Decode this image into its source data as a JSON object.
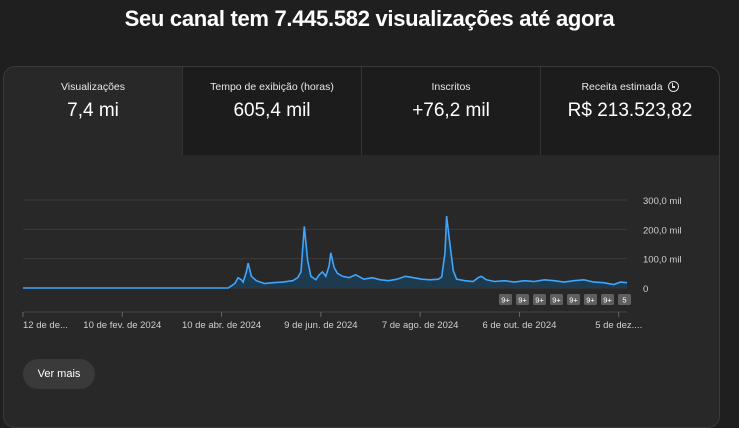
{
  "headline": "Seu canal tem 7.445.582 visualizações até agora",
  "metrics": [
    {
      "label": "Visualizações",
      "value": "7,4 mi"
    },
    {
      "label": "Tempo de exibição (horas)",
      "value": "605,4 mil"
    },
    {
      "label": "Inscritos",
      "value": "+76,2 mil"
    },
    {
      "label": "Receita estimada",
      "value": "R$ 213.523,82",
      "icon": "clock-icon"
    }
  ],
  "see_more_label": "Ver mais",
  "colors": {
    "line": "#3ea6ff",
    "fill": "#1e3a4f",
    "grid": "#3a3a3a",
    "marker": "#5f5f5f"
  },
  "chart_data": {
    "type": "area",
    "y_ticks": [
      "300,0 mil",
      "200,0 mil",
      "100,0 mil",
      "0"
    ],
    "ylim": [
      0,
      300000
    ],
    "x_ticks": [
      "12 de de...",
      "10 de fev. de 2024",
      "10 de abr. de 2024",
      "9 de jun. de 2024",
      "7 de ago. de 2024",
      "6 de out. de 2024",
      "5 de dez...."
    ],
    "x_tick_days": [
      0,
      60,
      120,
      180,
      240,
      300,
      360
    ],
    "x_range_days": [
      0,
      365
    ],
    "series": [
      {
        "points": [
          [
            0,
            0
          ],
          [
            124,
            0
          ],
          [
            128,
            15000
          ],
          [
            130,
            35000
          ],
          [
            132,
            28000
          ],
          [
            133,
            20000
          ],
          [
            135,
            55000
          ],
          [
            136,
            85000
          ],
          [
            138,
            40000
          ],
          [
            141,
            25000
          ],
          [
            146,
            15000
          ],
          [
            151,
            18000
          ],
          [
            157,
            20000
          ],
          [
            163,
            25000
          ],
          [
            166,
            35000
          ],
          [
            168,
            55000
          ],
          [
            170,
            210000
          ],
          [
            172,
            95000
          ],
          [
            174,
            40000
          ],
          [
            177,
            28000
          ],
          [
            179,
            45000
          ],
          [
            181,
            55000
          ],
          [
            183,
            40000
          ],
          [
            185,
            75000
          ],
          [
            186,
            120000
          ],
          [
            188,
            70000
          ],
          [
            190,
            50000
          ],
          [
            193,
            40000
          ],
          [
            197,
            35000
          ],
          [
            201,
            45000
          ],
          [
            206,
            30000
          ],
          [
            211,
            35000
          ],
          [
            216,
            28000
          ],
          [
            221,
            25000
          ],
          [
            226,
            30000
          ],
          [
            231,
            40000
          ],
          [
            236,
            35000
          ],
          [
            241,
            30000
          ],
          [
            246,
            28000
          ],
          [
            251,
            30000
          ],
          [
            253,
            38000
          ],
          [
            255,
            120000
          ],
          [
            256,
            245000
          ],
          [
            258,
            150000
          ],
          [
            260,
            60000
          ],
          [
            262,
            30000
          ],
          [
            267,
            25000
          ],
          [
            272,
            22000
          ],
          [
            275,
            35000
          ],
          [
            277,
            40000
          ],
          [
            280,
            28000
          ],
          [
            285,
            22000
          ],
          [
            291,
            25000
          ],
          [
            297,
            20000
          ],
          [
            303,
            25000
          ],
          [
            309,
            22000
          ],
          [
            315,
            28000
          ],
          [
            321,
            25000
          ],
          [
            327,
            20000
          ],
          [
            333,
            25000
          ],
          [
            339,
            28000
          ],
          [
            345,
            20000
          ],
          [
            351,
            18000
          ],
          [
            357,
            12000
          ],
          [
            361,
            20000
          ],
          [
            365,
            18000
          ]
        ]
      }
    ],
    "markers": [
      "9+",
      "9+",
      "9+",
      "9+",
      "9+",
      "9+",
      "9+",
      "5"
    ]
  }
}
